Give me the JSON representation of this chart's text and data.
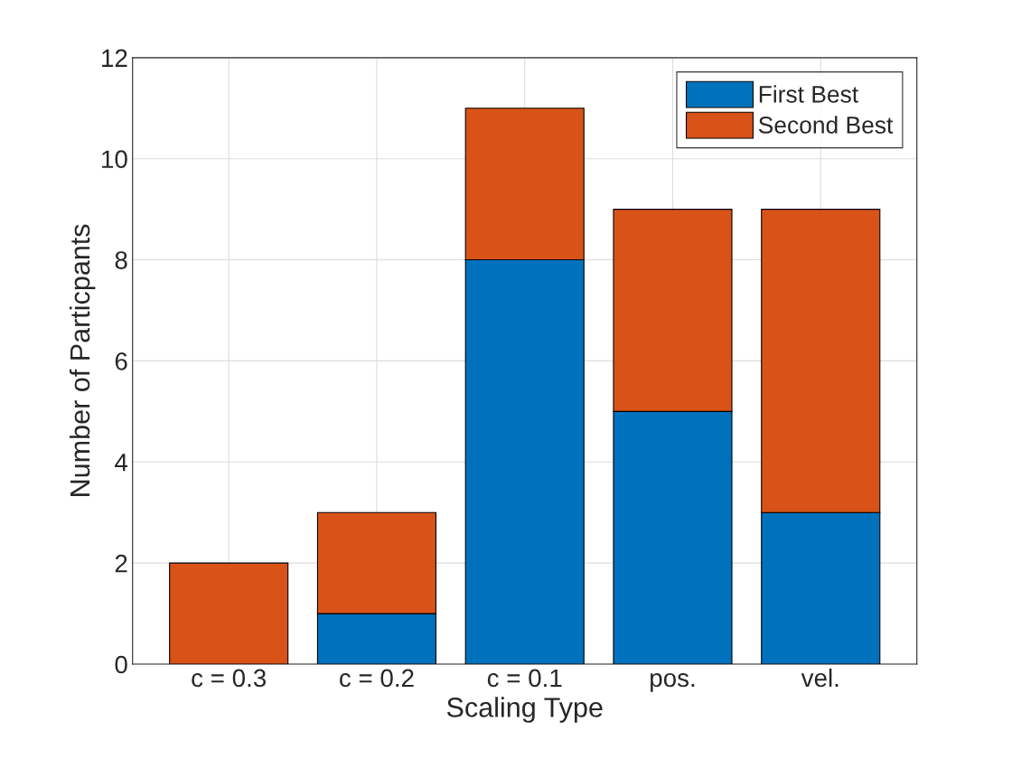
{
  "chart_data": {
    "type": "bar",
    "xlabel": "Scaling Type",
    "ylabel": "Number of Particpants",
    "categories": [
      "c = 0.3",
      "c = 0.2",
      "c = 0.1",
      "pos.",
      "vel."
    ],
    "series": [
      {
        "name": "First Best",
        "color": "#0072bd",
        "values": [
          0,
          1,
          8,
          5,
          3
        ]
      },
      {
        "name": "Second Best",
        "color": "#d95319",
        "values": [
          2,
          2,
          3,
          4,
          6
        ]
      }
    ],
    "stacked": true,
    "ylim": [
      0,
      12
    ],
    "yticks": [
      0,
      2,
      4,
      6,
      8,
      10,
      12
    ],
    "grid": true,
    "legend": "top right"
  }
}
